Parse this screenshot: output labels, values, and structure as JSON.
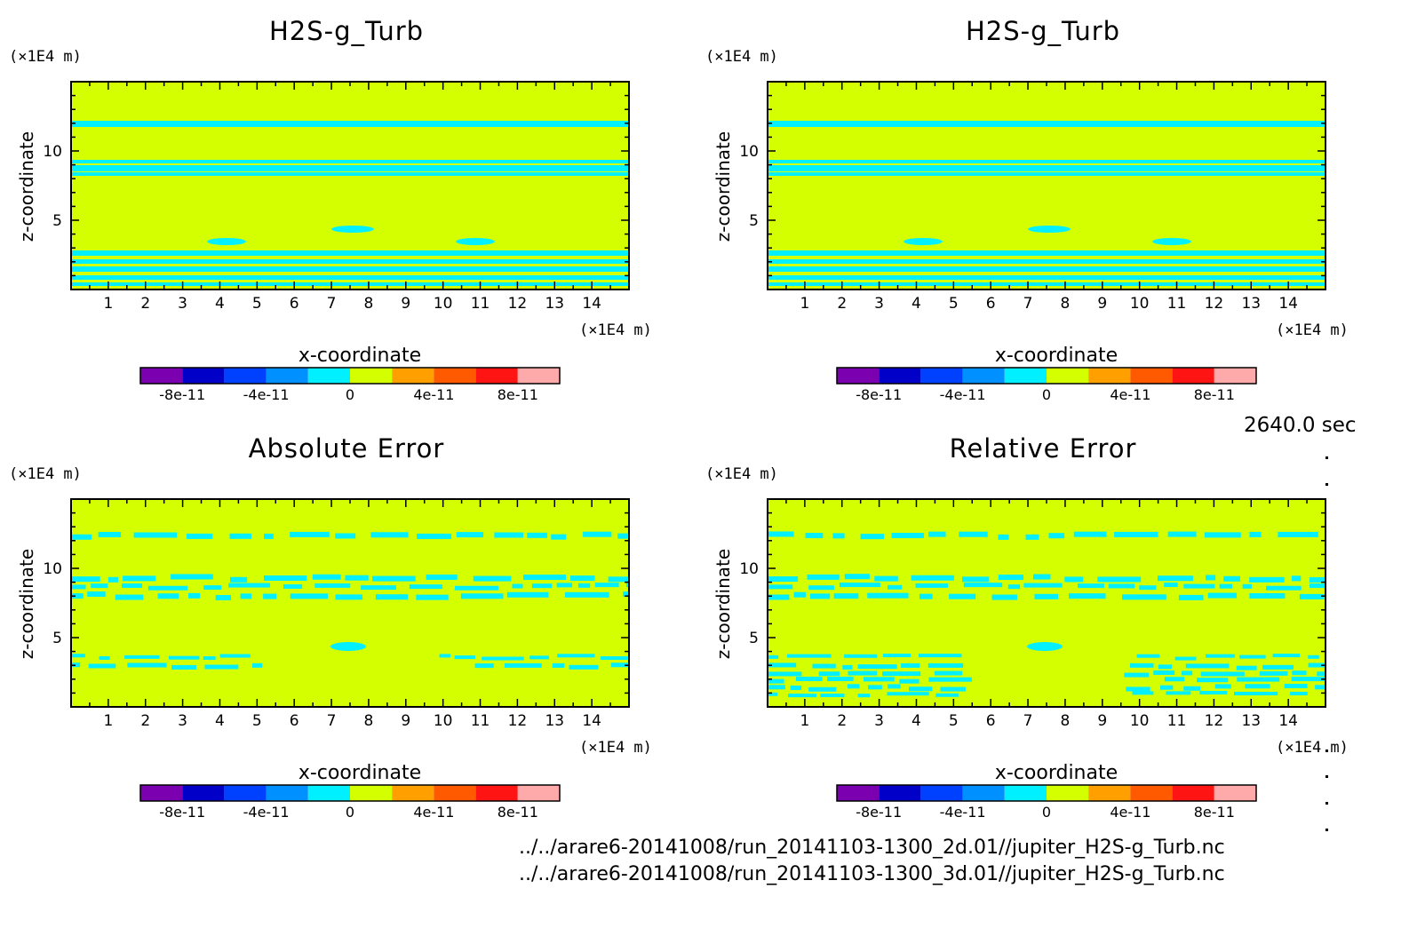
{
  "figure": {
    "time_label": "2640.0 sec",
    "file_paths": [
      "../../arare6-20141008/run_20141103-1300_2d.01//jupiter_H2S-g_Turb.nc",
      "../../arare6-20141008/run_20141103-1300_3d.01//jupiter_H2S-g_Turb.nc"
    ],
    "colors": {
      "background_field": "#d4ff00",
      "contour_region": "#00f0ff",
      "frame": "#000000"
    }
  },
  "chart_data": [
    {
      "type": "heatmap",
      "title": "H2S-g_Turb",
      "xlabel": "x-coordinate",
      "ylabel": "z-coordinate",
      "x_unit": "(×1E4 m)",
      "y_unit": "(×1E4 m)",
      "xlim": [
        0,
        15
      ],
      "ylim": [
        0,
        15
      ],
      "xticks": [
        1,
        2,
        3,
        4,
        5,
        6,
        7,
        8,
        9,
        10,
        11,
        12,
        13,
        14
      ],
      "yticks": [
        5,
        10
      ],
      "colorbar": {
        "levels": [
          -1e-10,
          -8e-11,
          -6e-11,
          -4e-11,
          -2e-11,
          0,
          2e-11,
          4e-11,
          6e-11,
          8e-11,
          1e-10
        ],
        "colors": [
          "#7a00b0",
          "#0000c8",
          "#0040ff",
          "#0090ff",
          "#00f0ff",
          "#d4ff00",
          "#ffa000",
          "#ff5a00",
          "#ff1414",
          "#ffaaaa"
        ],
        "tick_labels": [
          "-8e-11",
          "-4e-11",
          "0",
          "4e-11",
          "8e-11"
        ]
      }
    },
    {
      "type": "heatmap",
      "title": "H2S-g_Turb",
      "xlabel": "x-coordinate",
      "ylabel": "z-coordinate",
      "x_unit": "(×1E4 m)",
      "y_unit": "(×1E4 m)",
      "xlim": [
        0,
        15
      ],
      "ylim": [
        0,
        15
      ],
      "xticks": [
        1,
        2,
        3,
        4,
        5,
        6,
        7,
        8,
        9,
        10,
        11,
        12,
        13,
        14
      ],
      "yticks": [
        5,
        10
      ],
      "colorbar": {
        "levels": [
          -1e-10,
          -8e-11,
          -6e-11,
          -4e-11,
          -2e-11,
          0,
          2e-11,
          4e-11,
          6e-11,
          8e-11,
          1e-10
        ],
        "colors": [
          "#7a00b0",
          "#0000c8",
          "#0040ff",
          "#0090ff",
          "#00f0ff",
          "#d4ff00",
          "#ffa000",
          "#ff5a00",
          "#ff1414",
          "#ffaaaa"
        ],
        "tick_labels": [
          "-8e-11",
          "-4e-11",
          "0",
          "4e-11",
          "8e-11"
        ]
      }
    },
    {
      "type": "heatmap",
      "title": "Absolute Error",
      "xlabel": "x-coordinate",
      "ylabel": "z-coordinate",
      "x_unit": "(×1E4 m)",
      "y_unit": "(×1E4 m)",
      "xlim": [
        0,
        15
      ],
      "ylim": [
        0,
        15
      ],
      "xticks": [
        1,
        2,
        3,
        4,
        5,
        6,
        7,
        8,
        9,
        10,
        11,
        12,
        13,
        14
      ],
      "yticks": [
        5,
        10
      ],
      "colorbar": {
        "levels": [
          -1e-10,
          -8e-11,
          -6e-11,
          -4e-11,
          -2e-11,
          0,
          2e-11,
          4e-11,
          6e-11,
          8e-11,
          1e-10
        ],
        "colors": [
          "#7a00b0",
          "#0000c8",
          "#0040ff",
          "#0090ff",
          "#00f0ff",
          "#d4ff00",
          "#ffa000",
          "#ff5a00",
          "#ff1414",
          "#ffaaaa"
        ],
        "tick_labels": [
          "-8e-11",
          "-4e-11",
          "0",
          "4e-11",
          "8e-11"
        ]
      }
    },
    {
      "type": "heatmap",
      "title": "Relative Error",
      "xlabel": "x-coordinate",
      "ylabel": "z-coordinate",
      "x_unit": "(×1E4 m)",
      "y_unit": "(×1E4 m)",
      "xlim": [
        0,
        15
      ],
      "ylim": [
        0,
        15
      ],
      "xticks": [
        1,
        2,
        3,
        4,
        5,
        6,
        7,
        8,
        9,
        10,
        11,
        12,
        13,
        14
      ],
      "yticks": [
        5,
        10
      ],
      "colorbar": {
        "levels": [
          -1e-10,
          -8e-11,
          -6e-11,
          -4e-11,
          -2e-11,
          0,
          2e-11,
          4e-11,
          6e-11,
          8e-11,
          1e-10
        ],
        "colors": [
          "#7a00b0",
          "#0000c8",
          "#0040ff",
          "#0090ff",
          "#00f0ff",
          "#d4ff00",
          "#ffa000",
          "#ff5a00",
          "#ff1414",
          "#ffaaaa"
        ],
        "tick_labels": [
          "-8e-11",
          "-4e-11",
          "0",
          "4e-11",
          "8e-11"
        ]
      }
    }
  ]
}
